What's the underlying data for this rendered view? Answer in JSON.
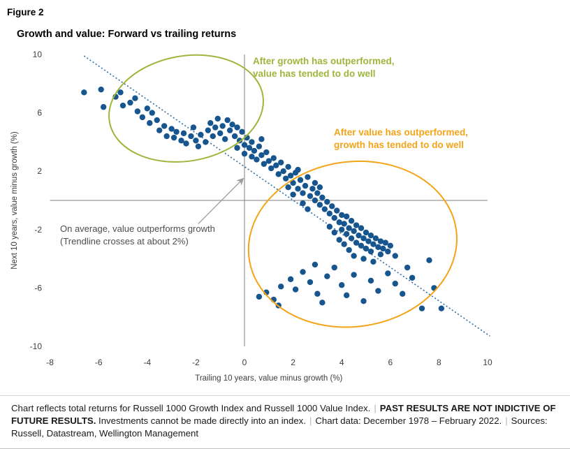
{
  "header": {
    "figure_label": "Figure 2",
    "title": "Growth and value: Forward vs trailing returns"
  },
  "colors": {
    "point": "#17558F",
    "trendline": "#2E6DA4",
    "green": "#9DB63B",
    "orange": "#F4A418",
    "axis_line": "#7F7F7F",
    "tick_text": "#3D3D3D",
    "note_text": "#4D4D4D",
    "arrow": "#9B9B9B"
  },
  "annotations": {
    "green_line1": "After growth has outperformed,",
    "green_line2": "value has tended to do well",
    "orange_line1": "After value has outperformed,",
    "orange_line2": "growth has tended to do well",
    "note_line1": "On average, value outperforms growth",
    "note_line2": "(Trendline crosses at about 2%)"
  },
  "chart_data": {
    "type": "scatter",
    "title": "Growth and value: Forward vs trailing returns",
    "xlabel": "Trailing 10 years, value minus growth (%)",
    "ylabel": "Next 10 years, value minus growth (%)",
    "xlim": [
      -8,
      10
    ],
    "ylim": [
      -10,
      10
    ],
    "x_ticks": [
      -8,
      -6,
      -4,
      -2,
      0,
      2,
      4,
      6,
      8,
      10
    ],
    "y_ticks": [
      -10,
      -6,
      -2,
      2,
      6,
      10
    ],
    "grid": false,
    "zero_lines": true,
    "legend": "none",
    "trendline": {
      "style": "dotted",
      "x1": -6.6,
      "y1": 9.9,
      "x2": 10.1,
      "y2": -9.3,
      "crosses_y_axis_at": 2
    },
    "highlight_ellipses": [
      {
        "name": "growth-outperformed-cluster",
        "color_key": "green",
        "cx": -2.4,
        "cy": 6.3,
        "rx": 3.2,
        "ry": 3.6,
        "rotation_deg": -10
      },
      {
        "name": "value-outperformed-cluster",
        "color_key": "orange",
        "cx": 4.45,
        "cy": -3.0,
        "rx": 4.3,
        "ry": 5.65,
        "rotation_deg": -8
      }
    ],
    "note_arrow": {
      "x1": -1.9,
      "y1": -1.6,
      "x2": -0.05,
      "y2": 1.5
    },
    "points": [
      [
        -6.6,
        7.4
      ],
      [
        -5.9,
        7.6
      ],
      [
        -5.8,
        6.4
      ],
      [
        -5.3,
        7.1
      ],
      [
        -5.1,
        7.4
      ],
      [
        -5.0,
        6.5
      ],
      [
        -4.7,
        6.7
      ],
      [
        -4.5,
        7.0
      ],
      [
        -4.4,
        6.1
      ],
      [
        -4.2,
        5.7
      ],
      [
        -4.0,
        6.3
      ],
      [
        -3.9,
        5.3
      ],
      [
        -3.8,
        6.0
      ],
      [
        -3.6,
        5.5
      ],
      [
        -3.5,
        4.8
      ],
      [
        -3.3,
        5.1
      ],
      [
        -3.2,
        4.4
      ],
      [
        -3.0,
        4.9
      ],
      [
        -2.9,
        4.3
      ],
      [
        -2.8,
        4.7
      ],
      [
        -2.6,
        4.1
      ],
      [
        -2.5,
        4.6
      ],
      [
        -2.4,
        3.9
      ],
      [
        -2.2,
        4.4
      ],
      [
        -2.1,
        5.0
      ],
      [
        -2.0,
        4.1
      ],
      [
        -1.9,
        3.7
      ],
      [
        -1.8,
        4.5
      ],
      [
        -1.6,
        4.0
      ],
      [
        -1.5,
        4.8
      ],
      [
        -1.4,
        5.3
      ],
      [
        -1.3,
        4.4
      ],
      [
        -1.2,
        5.0
      ],
      [
        -1.1,
        5.6
      ],
      [
        -1.0,
        4.6
      ],
      [
        -0.9,
        5.1
      ],
      [
        -0.8,
        4.2
      ],
      [
        -0.7,
        5.5
      ],
      [
        -0.6,
        4.8
      ],
      [
        -0.5,
        5.2
      ],
      [
        -0.4,
        4.4
      ],
      [
        -0.3,
        5.0
      ],
      [
        -0.3,
        3.6
      ],
      [
        -0.2,
        4.1
      ],
      [
        -0.1,
        4.7
      ],
      [
        0.0,
        3.8
      ],
      [
        0.0,
        3.2
      ],
      [
        0.1,
        4.3
      ],
      [
        0.2,
        3.6
      ],
      [
        0.3,
        4.0
      ],
      [
        0.3,
        3.0
      ],
      [
        0.4,
        3.4
      ],
      [
        0.5,
        2.8
      ],
      [
        0.6,
        3.7
      ],
      [
        0.7,
        3.1
      ],
      [
        0.7,
        4.2
      ],
      [
        0.8,
        2.5
      ],
      [
        0.9,
        3.3
      ],
      [
        1.0,
        2.7
      ],
      [
        1.1,
        2.2
      ],
      [
        1.2,
        2.9
      ],
      [
        1.3,
        2.4
      ],
      [
        1.4,
        1.8
      ],
      [
        1.5,
        2.6
      ],
      [
        1.6,
        2.0
      ],
      [
        1.7,
        1.5
      ],
      [
        1.8,
        2.3
      ],
      [
        1.9,
        1.7
      ],
      [
        2.0,
        1.2
      ],
      [
        2.1,
        1.9
      ],
      [
        2.2,
        0.8
      ],
      [
        2.3,
        1.4
      ],
      [
        2.4,
        0.5
      ],
      [
        2.5,
        1.0
      ],
      [
        2.6,
        1.6
      ],
      [
        2.7,
        0.3
      ],
      [
        2.8,
        0.8
      ],
      [
        2.9,
        0.0
      ],
      [
        3.0,
        0.5
      ],
      [
        3.1,
        -0.3
      ],
      [
        3.2,
        0.2
      ],
      [
        2.2,
        2.1
      ],
      [
        2.0,
        0.4
      ],
      [
        2.4,
        -0.2
      ],
      [
        1.8,
        0.9
      ],
      [
        2.9,
        1.2
      ],
      [
        3.1,
        0.9
      ],
      [
        2.6,
        -0.6
      ],
      [
        3.3,
        -0.6
      ],
      [
        3.4,
        -0.1
      ],
      [
        3.5,
        -0.9
      ],
      [
        3.6,
        -0.4
      ],
      [
        3.7,
        -1.2
      ],
      [
        3.8,
        -0.7
      ],
      [
        3.9,
        -1.5
      ],
      [
        4.0,
        -1.0
      ],
      [
        4.0,
        -2.0
      ],
      [
        4.1,
        -1.6
      ],
      [
        4.2,
        -1.1
      ],
      [
        4.2,
        -2.3
      ],
      [
        4.3,
        -1.9
      ],
      [
        4.4,
        -1.4
      ],
      [
        4.4,
        -2.6
      ],
      [
        4.5,
        -2.1
      ],
      [
        4.6,
        -1.7
      ],
      [
        4.6,
        -2.9
      ],
      [
        4.7,
        -2.4
      ],
      [
        4.8,
        -1.9
      ],
      [
        4.8,
        -3.1
      ],
      [
        4.9,
        -2.6
      ],
      [
        5.0,
        -2.2
      ],
      [
        5.0,
        -3.3
      ],
      [
        5.1,
        -2.8
      ],
      [
        5.2,
        -2.4
      ],
      [
        5.2,
        -3.5
      ],
      [
        5.3,
        -3.0
      ],
      [
        5.4,
        -2.6
      ],
      [
        5.5,
        -3.2
      ],
      [
        5.6,
        -2.8
      ],
      [
        5.6,
        -3.7
      ],
      [
        5.7,
        -3.3
      ],
      [
        5.8,
        -2.9
      ],
      [
        5.9,
        -3.5
      ],
      [
        6.0,
        -3.1
      ],
      [
        4.5,
        -3.8
      ],
      [
        4.9,
        -4.0
      ],
      [
        5.3,
        -4.2
      ],
      [
        4.3,
        -3.4
      ],
      [
        4.1,
        -3.0
      ],
      [
        3.9,
        -2.7
      ],
      [
        3.7,
        -2.2
      ],
      [
        3.5,
        -1.8
      ],
      [
        6.2,
        -3.8
      ],
      [
        0.9,
        -6.3
      ],
      [
        1.2,
        -6.8
      ],
      [
        1.5,
        -5.9
      ],
      [
        1.9,
        -5.4
      ],
      [
        2.1,
        -6.1
      ],
      [
        2.4,
        -4.9
      ],
      [
        2.7,
        -5.6
      ],
      [
        3.0,
        -6.4
      ],
      [
        3.2,
        -7.0
      ],
      [
        3.4,
        -5.2
      ],
      [
        3.7,
        -4.6
      ],
      [
        4.0,
        -5.8
      ],
      [
        4.2,
        -6.5
      ],
      [
        4.5,
        -5.1
      ],
      [
        4.9,
        -6.9
      ],
      [
        5.2,
        -5.5
      ],
      [
        5.5,
        -6.2
      ],
      [
        5.9,
        -5.0
      ],
      [
        6.2,
        -5.7
      ],
      [
        6.5,
        -6.4
      ],
      [
        6.9,
        -5.3
      ],
      [
        7.3,
        -7.4
      ],
      [
        7.6,
        -4.1
      ],
      [
        7.8,
        -6.0
      ],
      [
        0.6,
        -6.6
      ],
      [
        1.4,
        -7.2
      ],
      [
        2.9,
        -4.4
      ],
      [
        6.7,
        -4.6
      ],
      [
        8.1,
        -7.4
      ]
    ]
  },
  "footnote": {
    "segments": [
      {
        "text": "Chart reflects total returns for Russell 1000 Growth Index and Russell 1000 Value Index."
      },
      {
        "text": "|"
      },
      {
        "text": "PAST RESULTS ARE NOT INDICTIVE OF FUTURE RESULTS."
      },
      {
        "text": "Investments cannot be made directly into an index."
      },
      {
        "text": "|"
      },
      {
        "text": "Chart data: December 1978 – February 2022."
      },
      {
        "text": "|"
      },
      {
        "text": "Sources: Russell, Datastream, Wellington Management"
      }
    ]
  }
}
